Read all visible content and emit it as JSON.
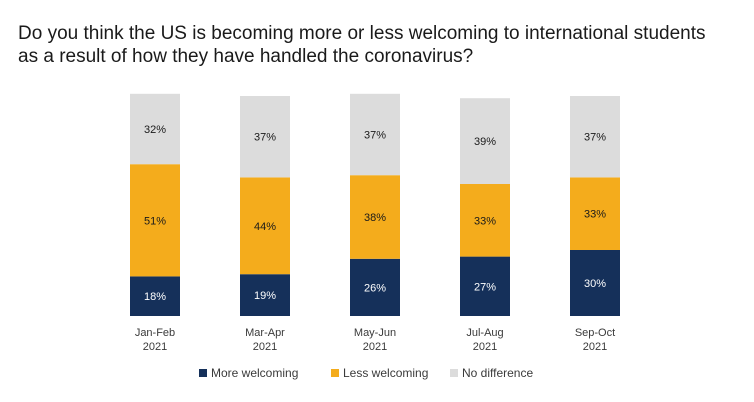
{
  "title_lines": [
    "Do you think the US is becoming more or less welcoming to international students",
    "as a result of how they have handled the coronavirus?"
  ],
  "colors": {
    "more": "#15305a",
    "less": "#f4ac1c",
    "none": "#dcdcdc",
    "label_dark": "#1a1a1a",
    "label_light": "#ffffff"
  },
  "chart_data": {
    "type": "bar",
    "stacked": true,
    "categories": [
      [
        "Jan-Feb",
        "2021"
      ],
      [
        "Mar-Apr",
        "2021"
      ],
      [
        "May-Jun",
        "2021"
      ],
      [
        "Jul-Aug",
        "2021"
      ],
      [
        "Sep-Oct",
        "2021"
      ]
    ],
    "series": [
      {
        "name": "More welcoming",
        "values": [
          18,
          19,
          26,
          27,
          30
        ],
        "labels": [
          "18%",
          "19%",
          "26%",
          "27%",
          "30%"
        ]
      },
      {
        "name": "Less welcoming",
        "values": [
          51,
          44,
          38,
          33,
          33
        ],
        "labels": [
          "51%",
          "44%",
          "38%",
          "33%",
          "33%"
        ]
      },
      {
        "name": "No difference",
        "values": [
          32,
          37,
          37,
          39,
          37
        ],
        "labels": [
          "32%",
          "37%",
          "37%",
          "39%",
          "37%"
        ]
      }
    ],
    "legend_position": "bottom",
    "grid": false,
    "ylim": [
      0,
      100
    ]
  }
}
